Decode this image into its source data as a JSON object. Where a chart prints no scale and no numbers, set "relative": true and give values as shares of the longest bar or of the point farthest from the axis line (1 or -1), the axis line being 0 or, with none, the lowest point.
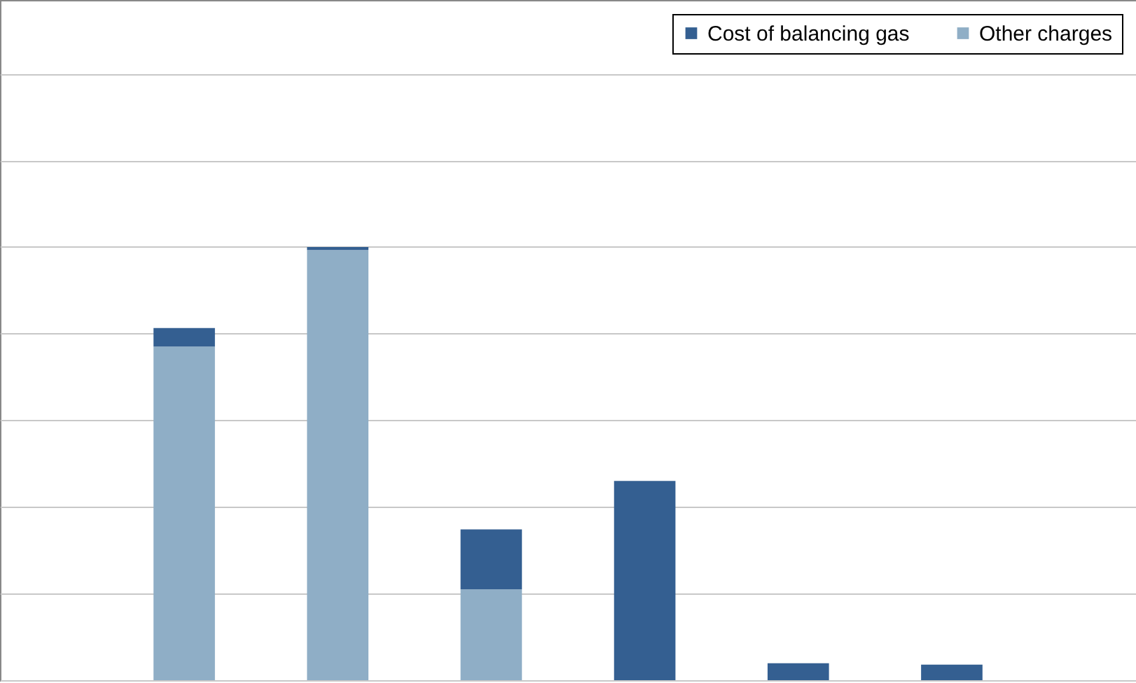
{
  "chart_data": {
    "type": "bar",
    "stacked": true,
    "relative": true,
    "categories": [
      null,
      null,
      null,
      null,
      null,
      null
    ],
    "series": [
      {
        "name": "Other charges",
        "color": "#8faec6",
        "values": [
          0.77,
          0.993,
          0.21,
          0,
          0,
          0
        ]
      },
      {
        "name": "Cost of balancing gas",
        "color": "#345f91",
        "values": [
          0.043,
          0.007,
          0.138,
          0.46,
          0.039,
          0.036
        ]
      }
    ],
    "grid": "y",
    "legend": "top right"
  }
}
